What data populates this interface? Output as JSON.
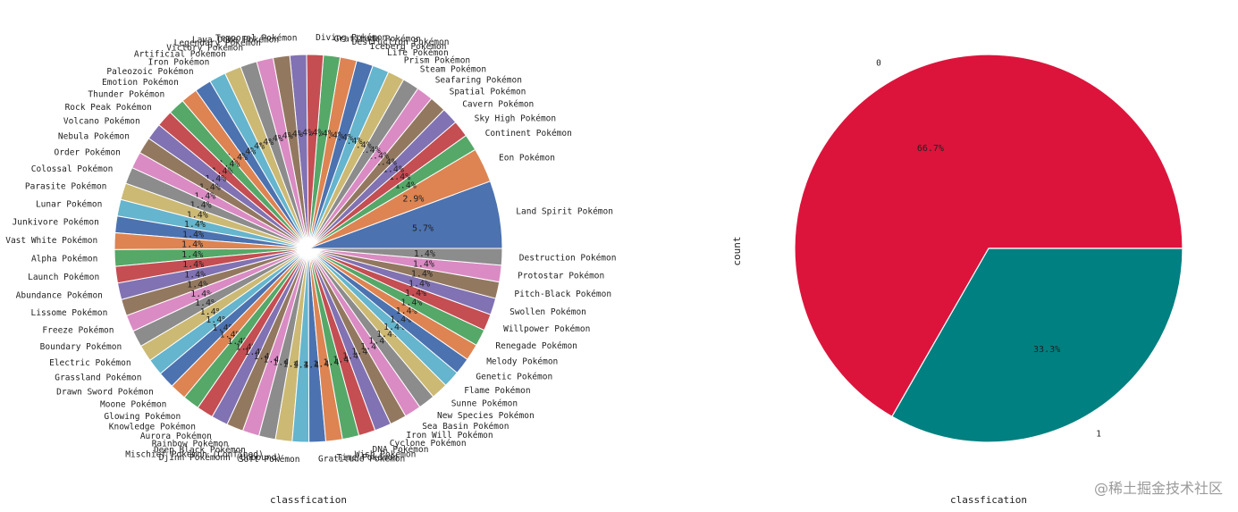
{
  "watermark": "@稀土掘金技术社区",
  "chart_data": [
    {
      "type": "pie",
      "title": "",
      "xlabel": "classfication",
      "ylabel": "",
      "start_angle_deg": 0,
      "direction": "counterclockwise",
      "categories": [
        "Land Spirit Pokémon",
        "Eon Pokémon",
        "Continent Pokémon",
        "Sky High Pokémon",
        "Cavern Pokémon",
        "Spatial Pokémon",
        "Seafaring Pokémon",
        "Steam Pokémon",
        "Prism Pokémon",
        "Life Pokémon",
        "Iceberg Pokémon",
        "Destruction Pokémon",
        "Gratitude Pokémon",
        "Diving Pokémon",
        "Temporal Pokémon",
        "Lava Dome Pokémon",
        "Legendary Pokémon",
        "Victory Pokémon",
        "Artificial Pokémon",
        "Iron Pokémon",
        "Paleozoic Pokémon",
        "Emotion Pokémon",
        "Thunder Pokémon",
        "Rock Peak Pokémon",
        "Volcano Pokémon",
        "Nebula Pokémon",
        "Order Pokémon",
        "Colossal Pokémon",
        "Parasite Pokémon",
        "Lunar Pokémon",
        "Junkivore Pokémon",
        "Vast White Pokémon",
        "Alpha Pokémon",
        "Launch Pokémon",
        "Abundance Pokémon",
        "Lissome Pokémon",
        "Freeze Pokémon",
        "Boundary Pokémon",
        "Electric Pokémon",
        "Grassland Pokémon",
        "Drawn Sword Pokémon",
        "Moone Pokémon",
        "Glowing Pokémon",
        "Knowledge Pokémon",
        "Aurora Pokémon",
        "Rainbow Pokémon",
        "Deep Black Pokémon",
        "Mischief Pokémon (Confined)",
        "Djinn Pokémonn (Unbound)",
        "Soft Pokémon",
        "Gratitude Pokémon",
        "Time Pokémon",
        "Wish Pokémon",
        "DNA Pokémon",
        "Cyclone Pokémon",
        "Iron Will Pokémon",
        "Sea Basin Pokémon",
        "New Species Pokémon",
        "Sunne Pokémon",
        "Flame Pokémon",
        "Genetic Pokémon",
        "Melody Pokémon",
        "Renegade Pokémon",
        "Willpower Pokémon",
        "Swollen Pokémon",
        "Pitch-Black Pokémon",
        "Protostar Pokémon",
        "Destruction Pokémon"
      ],
      "values": [
        5.7,
        2.9,
        1.4,
        1.4,
        1.4,
        1.4,
        1.4,
        1.4,
        1.4,
        1.4,
        1.4,
        1.4,
        1.4,
        1.4,
        1.4,
        1.4,
        1.4,
        1.4,
        1.4,
        1.4,
        1.4,
        1.4,
        1.4,
        1.4,
        1.4,
        1.4,
        1.4,
        1.4,
        1.4,
        1.4,
        1.4,
        1.4,
        1.4,
        1.4,
        1.4,
        1.4,
        1.4,
        1.4,
        1.4,
        1.4,
        1.4,
        1.4,
        1.4,
        1.4,
        1.4,
        1.4,
        1.4,
        1.4,
        1.4,
        1.4,
        1.4,
        1.4,
        1.4,
        1.4,
        1.4,
        1.4,
        1.4,
        1.4,
        1.4,
        1.4,
        1.4,
        1.4,
        1.4,
        1.4,
        1.4,
        1.4,
        1.4,
        1.4
      ],
      "value_labels": [
        "5.7%",
        "2.9%",
        "1.4%",
        "1.4%",
        "1.4%",
        "1.4%",
        "1.4%",
        "1.4%",
        "1.4%",
        "1.4%",
        "1.4%",
        "1.4%",
        "1.4%",
        "1.4%",
        "1.4%",
        "1.4%",
        "1.4%",
        "1.4%",
        "1.4%",
        "1.4%",
        "1.4%",
        "1.4%",
        "1.4%",
        "1.4%",
        "1.4%",
        "1.4%",
        "1.4%",
        "1.4%",
        "1.4%",
        "1.4%",
        "1.4%",
        "1.4%",
        "1.4%",
        "1.4%",
        "1.4%",
        "1.4%",
        "1.4%",
        "1.4%",
        "1.4%",
        "1.4%",
        "1.4%",
        "1.4%",
        "1.4%",
        "1.4%",
        "1.4%",
        "1.4%",
        "1.4%",
        "1.4%",
        "1.4%",
        "1.4%",
        "1.4%",
        "1.4%",
        "1.4%",
        "1.4%",
        "1.4%",
        "1.4%",
        "1.4%",
        "1.4%",
        "1.4%",
        "1.4%",
        "1.4%",
        "1.4%",
        "1.4%",
        "1.4%",
        "1.4%",
        "1.4%",
        "1.4%",
        "1.4%"
      ],
      "colors": [
        "#4c72b0",
        "#dd8452",
        "#55a868",
        "#c44e52",
        "#8172b3",
        "#937860",
        "#da8bc3",
        "#8c8c8c",
        "#ccb974",
        "#64b5cd"
      ]
    },
    {
      "type": "pie",
      "title": "",
      "xlabel": "classfication",
      "ylabel": "count",
      "start_angle_deg": 0,
      "direction": "counterclockwise",
      "categories": [
        "0",
        "1"
      ],
      "values": [
        66.7,
        33.3
      ],
      "value_labels": [
        "66.7%",
        "33.3%"
      ],
      "colors": [
        "#dc143c",
        "#008080"
      ]
    }
  ]
}
